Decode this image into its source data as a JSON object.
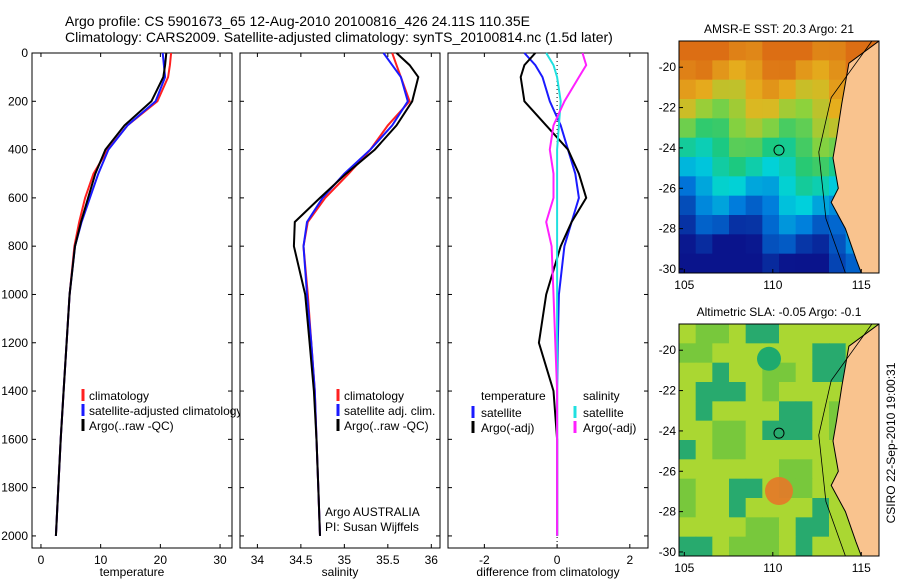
{
  "header": {
    "line1": "Argo profile: CS 5901673_65 12-Aug-2010 20100816_426 24.11S 110.35E",
    "line2": "Climatology: CARS2009. Satellite-adjusted climatology: synTS_20100814.nc (1.5d later)"
  },
  "side_text": "CSIRO 22-Sep-2010 19:00:31",
  "colors": {
    "red": "#ff2020",
    "blue": "#1a1aff",
    "black": "#000000",
    "cyan": "#20e0e0",
    "magenta": "#ff20ff"
  },
  "chart_data": [
    {
      "type": "line",
      "xlabel": "temperature",
      "ylim": [
        0,
        2050
      ],
      "y_reversed": true,
      "yticks": [
        0,
        200,
        400,
        600,
        800,
        1000,
        1200,
        1400,
        1600,
        1800,
        2000
      ],
      "xlim": [
        -1.5,
        32
      ],
      "xticks": [
        0,
        10,
        20,
        30
      ],
      "legend": [
        "climatology",
        "satellite-adjusted climatology",
        "Argo(..raw -QC)"
      ],
      "series": [
        {
          "name": "climatology",
          "color": "red",
          "x": [
            21.8,
            21.6,
            21.3,
            19.5,
            14.5,
            11.2,
            8.8,
            7.4,
            6.4,
            5.6,
            4.8,
            4.3,
            3.8,
            3.3,
            2.9,
            2.5
          ],
          "y": [
            0,
            50,
            100,
            200,
            300,
            400,
            500,
            600,
            700,
            800,
            1000,
            1200,
            1400,
            1600,
            1800,
            2000
          ]
        },
        {
          "name": "satellite-adjusted climatology",
          "color": "blue",
          "x": [
            20.4,
            20.6,
            20.8,
            19.2,
            14.5,
            11.3,
            9.6,
            8.2,
            6.8,
            5.7,
            4.8,
            4.3,
            3.8,
            3.3,
            2.9,
            2.5
          ],
          "y": [
            0,
            50,
            100,
            200,
            300,
            400,
            500,
            600,
            700,
            800,
            1000,
            1200,
            1400,
            1600,
            1800,
            2000
          ]
        },
        {
          "name": "Argo(..raw -QC)",
          "color": "black",
          "x": [
            21.0,
            20.8,
            20.5,
            18.5,
            14.0,
            10.8,
            9.1,
            7.9,
            6.7,
            5.7,
            4.8,
            4.3,
            3.8,
            3.3,
            2.9,
            2.5
          ],
          "y": [
            0,
            50,
            100,
            200,
            300,
            400,
            500,
            600,
            700,
            800,
            1000,
            1200,
            1400,
            1600,
            1800,
            2000
          ]
        }
      ]
    },
    {
      "type": "line",
      "xlabel": "salinity",
      "ylim": [
        0,
        2050
      ],
      "y_reversed": true,
      "xlim": [
        33.8,
        36.1
      ],
      "xticks": [
        34,
        34.5,
        35,
        35.5,
        36
      ],
      "legend": [
        "climatology",
        "satellite adj. clim.",
        "Argo(..raw -QC)"
      ],
      "annotations": [
        "Argo AUSTRALIA",
        "PI: Susan Wijffels"
      ],
      "series": [
        {
          "name": "climatology",
          "color": "red",
          "x": [
            35.55,
            35.6,
            35.65,
            35.75,
            35.5,
            35.3,
            35.05,
            34.78,
            34.58,
            34.53,
            34.58,
            34.62,
            34.66,
            34.68,
            34.7,
            34.72
          ],
          "y": [
            0,
            50,
            100,
            200,
            300,
            400,
            500,
            600,
            700,
            800,
            1000,
            1200,
            1400,
            1600,
            1800,
            2000
          ]
        },
        {
          "name": "satellite adj. clim.",
          "color": "blue",
          "x": [
            35.45,
            35.55,
            35.65,
            35.73,
            35.55,
            35.3,
            35.0,
            34.75,
            34.57,
            34.53,
            34.57,
            34.62,
            34.66,
            34.68,
            34.7,
            34.72
          ],
          "y": [
            0,
            50,
            100,
            200,
            300,
            400,
            500,
            600,
            700,
            800,
            1000,
            1200,
            1400,
            1600,
            1800,
            2000
          ]
        },
        {
          "name": "Argo(..raw -QC)",
          "color": "black",
          "x": [
            35.6,
            35.75,
            35.85,
            35.78,
            35.6,
            35.35,
            35.02,
            34.72,
            34.43,
            34.42,
            34.55,
            34.6,
            34.65,
            34.68,
            34.7,
            34.72
          ],
          "y": [
            0,
            50,
            100,
            200,
            300,
            400,
            500,
            600,
            700,
            800,
            1000,
            1200,
            1400,
            1600,
            1800,
            2000
          ]
        }
      ]
    },
    {
      "type": "line",
      "xlabel": "difference from climatology",
      "ylim": [
        0,
        2050
      ],
      "y_reversed": true,
      "xlim": [
        -3,
        2.5
      ],
      "xticks": [
        -2,
        0,
        2
      ],
      "legend": [
        "temperature",
        "satellite",
        "Argo(-adj)",
        "salinity",
        "satellite",
        "Argo(-adj)"
      ],
      "series": [
        {
          "name": "temperature satellite",
          "color": "blue",
          "x": [
            -0.9,
            -0.6,
            -0.4,
            -0.2,
            0.1,
            0.3,
            0.5,
            0.6,
            0.4,
            0.2,
            0.05,
            0.02,
            0.0,
            0.0,
            0.0,
            0.0
          ],
          "y": [
            0,
            50,
            100,
            200,
            300,
            400,
            500,
            600,
            700,
            800,
            1000,
            1200,
            1400,
            1600,
            1800,
            2000
          ]
        },
        {
          "name": "temperature Argo(-adj)",
          "color": "black",
          "x": [
            -0.6,
            -0.9,
            -1.0,
            -0.9,
            -0.3,
            0.3,
            0.6,
            0.8,
            0.4,
            0.1,
            -0.3,
            -0.5,
            -0.1,
            0.0,
            0.0,
            0.0
          ],
          "y": [
            0,
            50,
            100,
            200,
            300,
            400,
            500,
            600,
            700,
            800,
            1000,
            1200,
            1400,
            1600,
            1800,
            2000
          ]
        },
        {
          "name": "salinity satellite",
          "color": "cyan",
          "x": [
            -0.3,
            -0.1,
            0.0,
            0.1,
            0.05,
            0.0,
            0.0,
            0.0,
            0.0,
            0.0,
            0.0,
            0.0,
            0.0,
            0.0,
            0.0,
            0.0
          ],
          "y": [
            0,
            50,
            100,
            200,
            300,
            400,
            500,
            600,
            700,
            800,
            1000,
            1200,
            1400,
            1600,
            1800,
            2000
          ]
        },
        {
          "name": "salinity Argo(-adj)",
          "color": "magenta",
          "x": [
            0.7,
            0.8,
            0.6,
            0.2,
            -0.1,
            -0.2,
            -0.1,
            -0.1,
            -0.3,
            -0.15,
            -0.1,
            -0.05,
            0.0,
            0.0,
            0.0,
            0.0
          ],
          "y": [
            0,
            50,
            100,
            200,
            300,
            400,
            500,
            600,
            700,
            800,
            1000,
            1200,
            1400,
            1600,
            1800,
            2000
          ]
        }
      ]
    },
    {
      "type": "heatmap",
      "title": "AMSR-E SST: 20.3 Argo: 21",
      "xlim": [
        104.7,
        116
      ],
      "ylim": [
        -30.2,
        -18.7
      ],
      "xticks": [
        105,
        110,
        115
      ],
      "yticks": [
        -20,
        -22,
        -24,
        -26,
        -28,
        -30
      ],
      "marker": {
        "lon": 110.35,
        "lat": -24.11
      }
    },
    {
      "type": "heatmap",
      "title": "Altimetric SLA: -0.05 Argo: -0.1",
      "xlim": [
        104.7,
        116
      ],
      "ylim": [
        -30.2,
        -18.7
      ],
      "xticks": [
        105,
        110,
        115
      ],
      "yticks": [
        -20,
        -22,
        -24,
        -26,
        -28,
        -30
      ],
      "marker": {
        "lon": 110.35,
        "lat": -24.11
      }
    }
  ]
}
